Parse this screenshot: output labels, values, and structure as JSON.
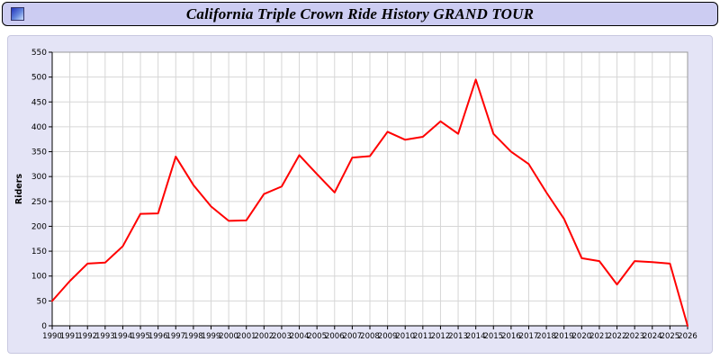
{
  "window": {
    "title": "California Triple Crown Ride History GRAND TOUR"
  },
  "colors": {
    "title_bar_bg": "#ccccf2",
    "panel_bg": "#e4e4f6",
    "plot_bg": "#ffffff",
    "grid": "#d6d6d6",
    "axis": "#000000",
    "line": "#ff0000"
  },
  "chart_data": {
    "type": "line",
    "title": "California Triple Crown Ride History GRAND TOUR",
    "xlabel": "",
    "ylabel": "Riders",
    "ylim": [
      0,
      550
    ],
    "ytick_step": 50,
    "grid": true,
    "legend_position": "none",
    "x": [
      1990,
      1991,
      1992,
      1993,
      1994,
      1995,
      1996,
      1997,
      1998,
      1999,
      2000,
      2001,
      2002,
      2003,
      2004,
      2005,
      2006,
      2007,
      2008,
      2009,
      2010,
      2011,
      2012,
      2013,
      2014,
      2015,
      2016,
      2017,
      2018,
      2019,
      2020,
      2021,
      2022,
      2023,
      2024,
      2025,
      2026
    ],
    "series": [
      {
        "name": "Riders",
        "color": "#ff0000",
        "values": [
          50,
          90,
          125,
          127,
          160,
          225,
          226,
          340,
          283,
          240,
          211,
          212,
          265,
          280,
          343,
          305,
          268,
          338,
          341,
          390,
          374,
          380,
          411,
          386,
          495,
          386,
          350,
          325,
          268,
          215,
          136,
          130,
          83,
          130,
          128,
          125,
          0
        ]
      }
    ]
  }
}
